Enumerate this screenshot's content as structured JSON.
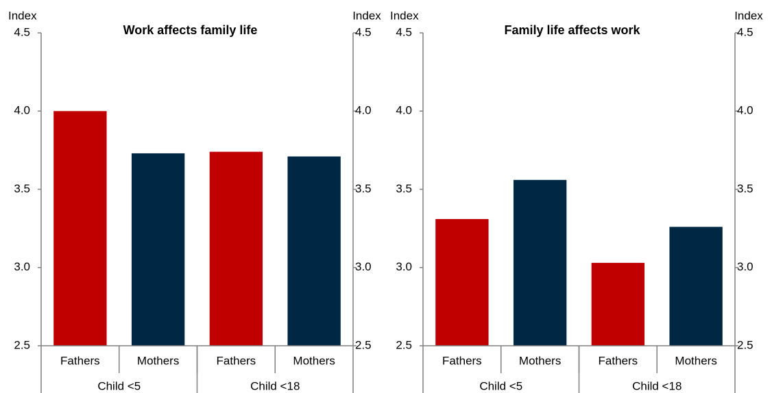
{
  "chart_data": [
    {
      "type": "bar",
      "title": "Work affects family life",
      "y_label": "Index",
      "y2_label": "Index",
      "categories": [
        "Fathers",
        "Mothers",
        "Fathers",
        "Mothers"
      ],
      "groups": [
        "Child <5",
        "Child <18"
      ],
      "values": [
        4.0,
        3.73,
        3.74,
        3.71
      ],
      "colors": [
        "#c00000",
        "#002845",
        "#c00000",
        "#002845"
      ],
      "ylim": [
        2.5,
        4.5
      ],
      "yticks": [
        2.5,
        {
          "value": 3,
          "label": "3.0"
        },
        3.5,
        {
          "value": 4,
          "label": "4.0"
        },
        4.5
      ],
      "y2lim": [
        2.5,
        4.5
      ],
      "y2ticks": [
        2.5,
        {
          "value": 3,
          "label": "3.0"
        },
        3.5,
        {
          "value": 4,
          "label": "4.0"
        },
        4.5
      ]
    },
    {
      "type": "bar",
      "title": "Family life affects work",
      "y_label": "Index",
      "y2_label": "Index",
      "categories": [
        "Fathers",
        "Mothers",
        "Fathers",
        "Mothers"
      ],
      "groups": [
        "Child <5",
        "Child <18"
      ],
      "values": [
        3.31,
        3.56,
        3.03,
        3.26
      ],
      "colors": [
        "#c00000",
        "#002845",
        "#c00000",
        "#002845"
      ],
      "ylim": [
        2.5,
        4.5
      ],
      "yticks": [
        2.5,
        {
          "value": 3,
          "label": "3.0"
        },
        3.5,
        {
          "value": 4,
          "label": "4.0"
        },
        4.5
      ],
      "y2lim": [
        2.5,
        4.5
      ],
      "y2ticks": [
        2.5,
        {
          "value": 3,
          "label": "3.0"
        },
        3.5,
        {
          "value": 4,
          "label": "4.0"
        },
        4.5
      ]
    }
  ]
}
